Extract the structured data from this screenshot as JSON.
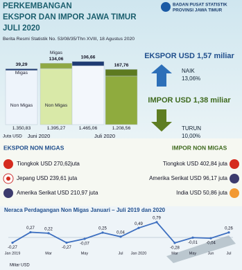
{
  "header": {
    "title_lines": [
      "PERKEMBANGAN",
      "EKSPOR DAN IMPOR  JAWA TIMUR",
      "JULI 2020"
    ],
    "agency_lines": [
      "BADAN PUSAT STATISTIK",
      "PROVINSI JAWA TIMUR"
    ],
    "subtitle": "Berita Resmi Statistik No. 53/08/35/Thn XVIII, 18 Agustus 2020"
  },
  "summary": {
    "export": {
      "title": "EKSPOR USD 1,57 miliar",
      "direction": "NAIK",
      "change": "13,06%"
    },
    "import": {
      "title": "IMPOR USD 1,38 miliar",
      "direction": "TURUN",
      "change": "10,00%"
    }
  },
  "export_non_migas": {
    "title": "EKSPOR NON MIGAS",
    "items": [
      "Tiongkok USD 270,62juta",
      "Jepang USD 239,61 juta",
      "Amerika Serikat USD 210,97 juta"
    ]
  },
  "import_non_migas": {
    "title": "IMPOR NON MIGAS",
    "items": [
      "Tiongkok USD 402,84 juta",
      "Amerika Serikat USD 96,17 juta",
      "India USD 50,86 juta"
    ]
  },
  "chart_data": [
    {
      "type": "stacked-bar",
      "unit": "Juta USD",
      "groups": [
        "Juni 2020",
        "Juli 2020"
      ],
      "series": [
        {
          "name": "Non Migas",
          "values": [
            1350.83,
            1395.27,
            1465.06,
            1208.56
          ],
          "value_labels": [
            "1.350,83",
            "1.395,27",
            "1.465,06",
            "1.208,56"
          ],
          "colors": [
            "#eef4fb",
            "#d9e9a8",
            "#f3f7fc",
            "#8fab3e"
          ]
        },
        {
          "name": "Migas",
          "values": [
            39.29,
            134.06,
            106.66,
            167.76
          ],
          "value_labels": [
            "39,29",
            "134,06",
            "106,66",
            "167,76"
          ],
          "colors": [
            "#1f3b73",
            "#8fa845",
            "#1f3b73",
            "#5d7a20"
          ]
        }
      ]
    },
    {
      "type": "line",
      "title": "Neraca Perdagangan Non Migas  Januari – Juli 2019 dan 2020",
      "y_label": "Miliar USD",
      "categories": [
        "Jan 2019",
        null,
        "Mar",
        null,
        "May",
        null,
        "Jul",
        "Jan 2020",
        null,
        "Mar",
        "May",
        "Jun",
        "Jul"
      ],
      "values": [
        -0.27,
        0.27,
        0.22,
        -0.27,
        -0.07,
        0.25,
        0.04,
        0.49,
        0.79,
        -0.28,
        -0.01,
        -0.04,
        0.26
      ],
      "value_labels": [
        "-0,27",
        "0,27",
        "0,22",
        "-0,27",
        "-0,07",
        "0,25",
        "0,04",
        "0,49",
        "0,79",
        "-0,28",
        "-0,01",
        "-0,04",
        "0,26"
      ],
      "color": "#3d6fc0"
    }
  ]
}
